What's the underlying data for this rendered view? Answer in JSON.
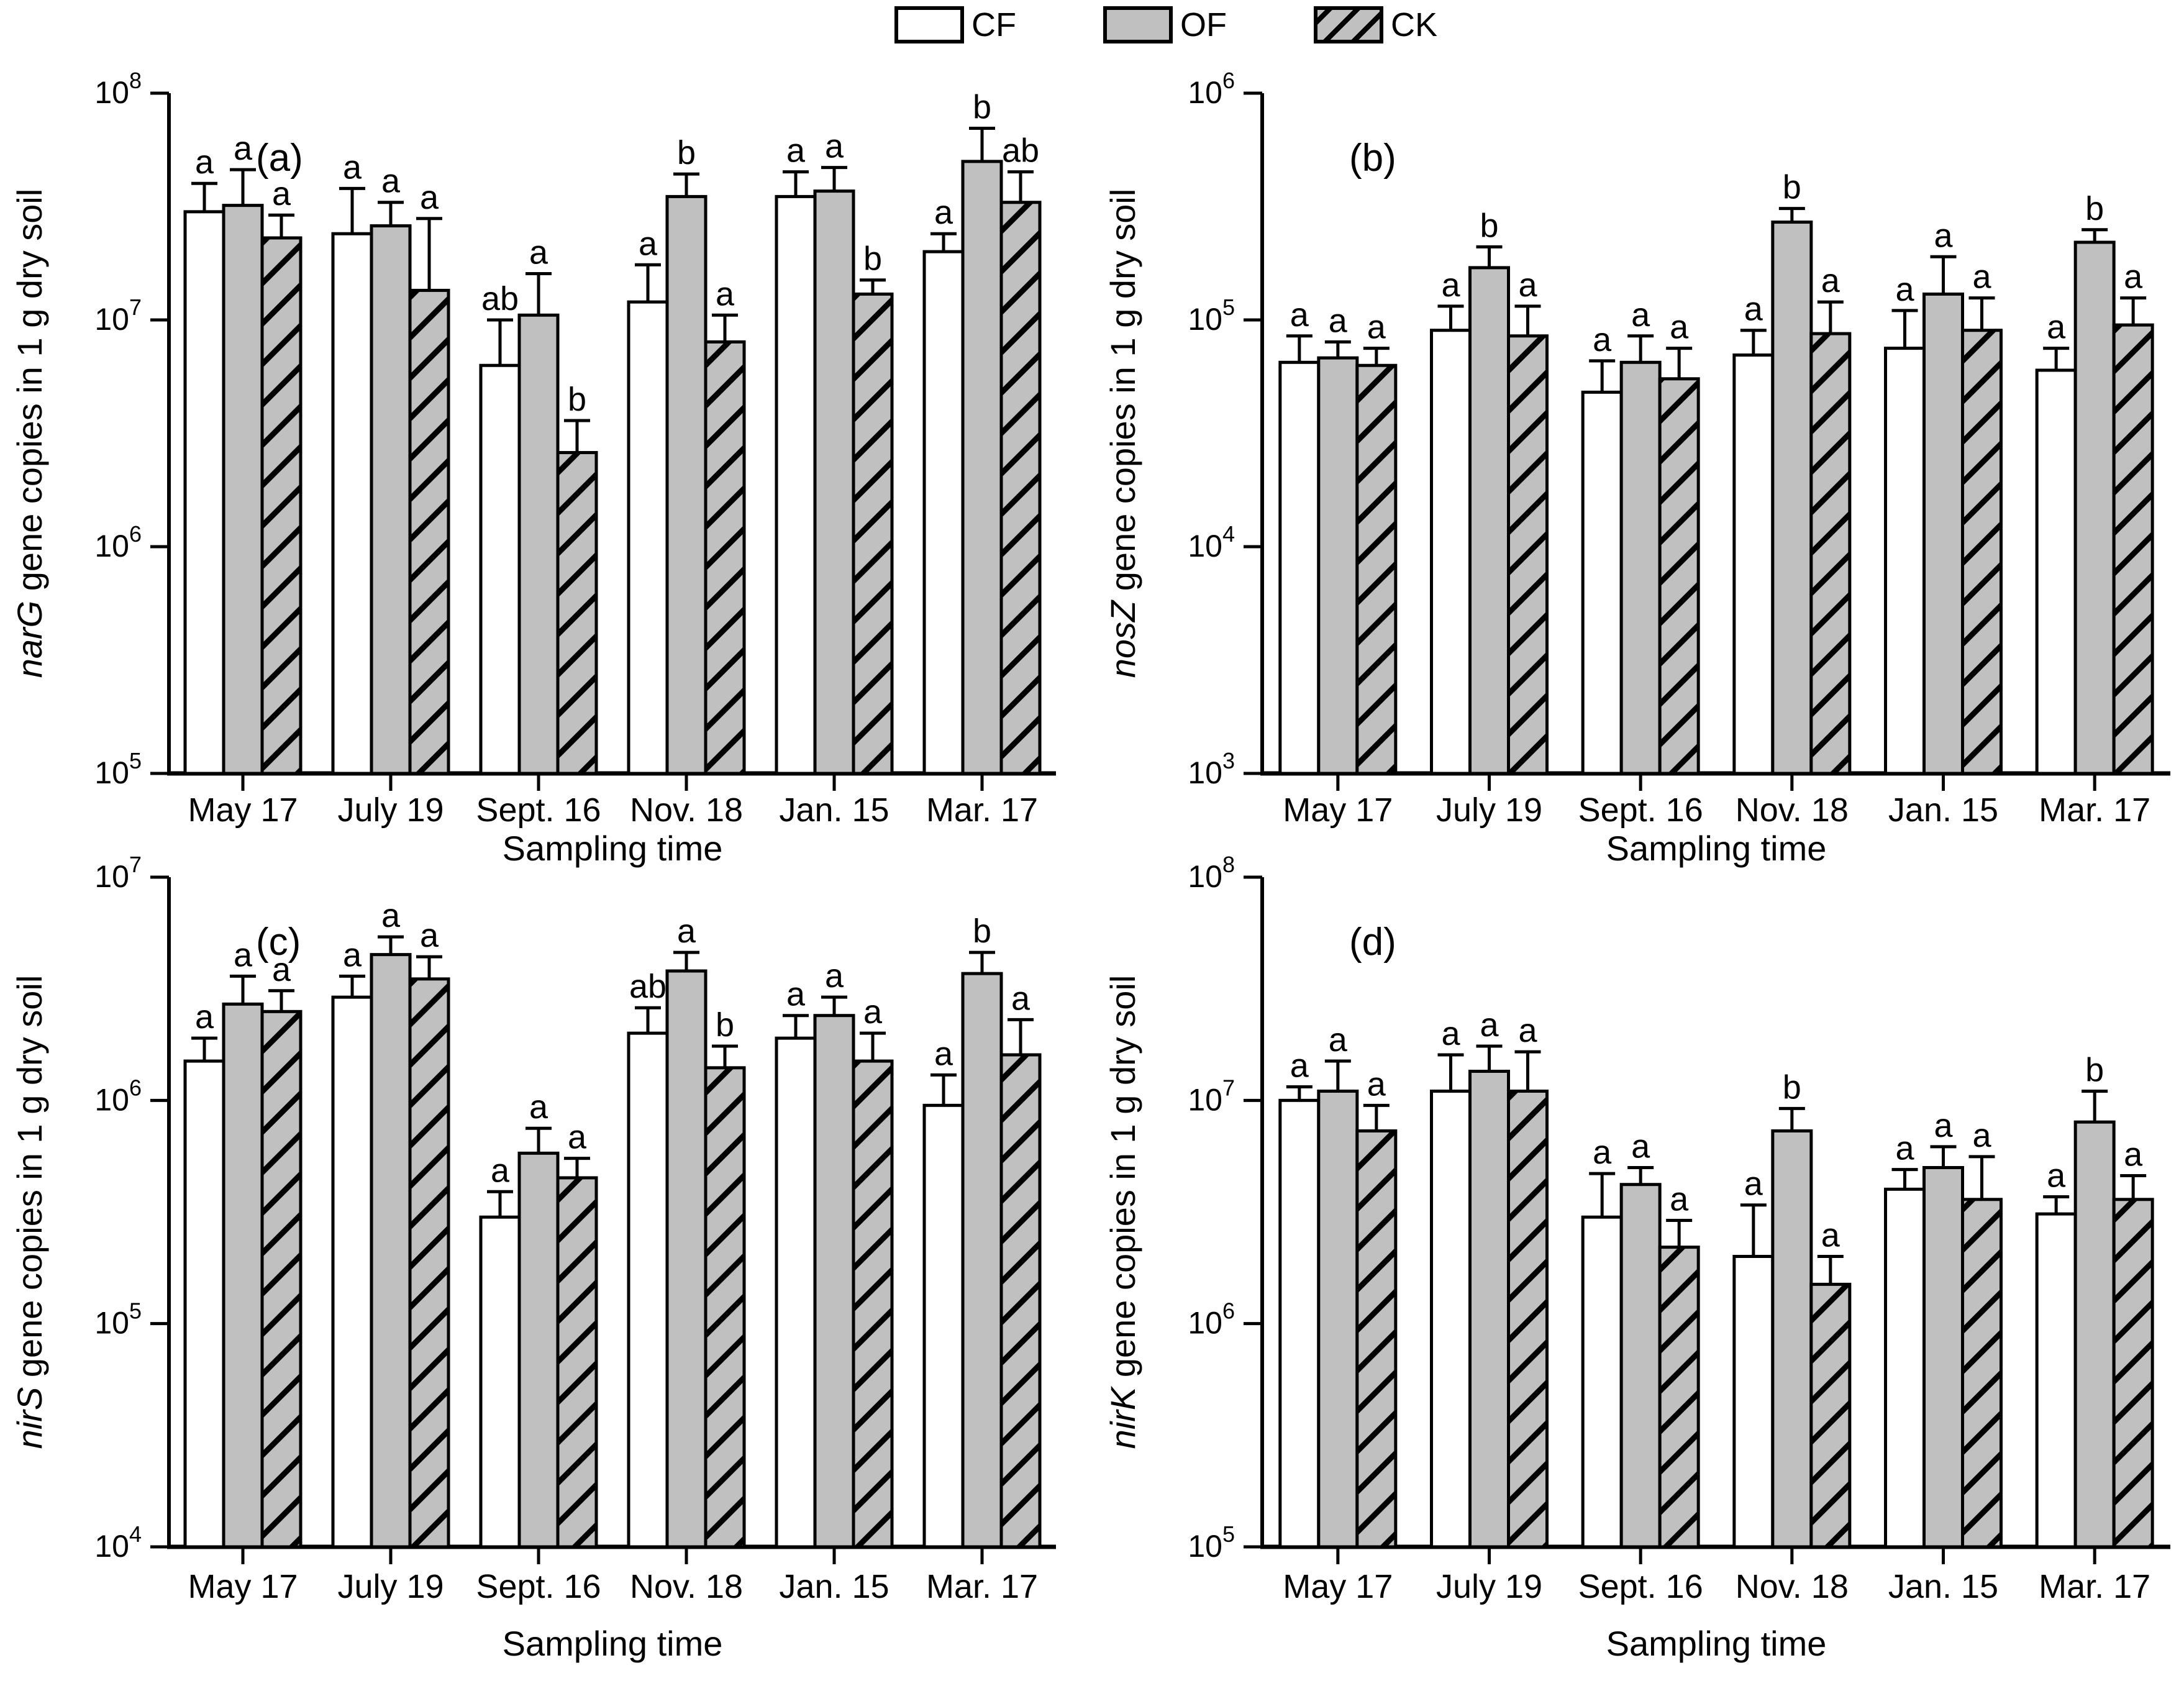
{
  "legend": {
    "items": [
      {
        "label": "CF",
        "fill": "#ffffff",
        "hatched": false
      },
      {
        "label": "OF",
        "fill": "#c0c0c0",
        "hatched": false
      },
      {
        "label": "CK",
        "fill": "#c0c0c0",
        "hatched": true
      }
    ]
  },
  "colors": {
    "axis": "#000000",
    "bar_outline": "#000000",
    "cf_fill": "#ffffff",
    "of_fill": "#c0c0c0",
    "ck_fill": "#c0c0c0",
    "hatch_line": "#000000"
  },
  "x_axis": {
    "title": "Sampling time",
    "categories": [
      "May 17",
      "July 19",
      "Sept. 16",
      "Nov. 18",
      "Jan. 15",
      "Mar. 17"
    ]
  },
  "chart_data": [
    {
      "panel": "(a)",
      "type": "bar",
      "y_scale": "log10",
      "gene": "narG",
      "ylabel_rest": " gene copies in 1 g dry soil",
      "ylim": [
        100000.0,
        100000000.0
      ],
      "ytick_exponents": [
        5,
        6,
        7,
        8
      ],
      "xlabel": "Sampling time",
      "categories": [
        "May 17",
        "July 19",
        "Sept. 16",
        "Nov. 18",
        "Jan. 15",
        "Mar. 17"
      ],
      "series": [
        {
          "name": "CF",
          "values": [
            30000000.0,
            24000000.0,
            6300000.0,
            12000000.0,
            35000000.0,
            20000000.0
          ],
          "err_top": [
            40000000.0,
            38000000.0,
            10000000.0,
            17500000.0,
            45000000.0,
            24000000.0
          ],
          "letters": [
            "a",
            "a",
            "ab",
            "a",
            "a",
            "a"
          ]
        },
        {
          "name": "OF",
          "values": [
            32000000.0,
            26000000.0,
            10500000.0,
            35000000.0,
            37000000.0,
            50000000.0
          ],
          "err_top": [
            46000000.0,
            33000000.0,
            16000000.0,
            44000000.0,
            47000000.0,
            70000000.0
          ],
          "letters": [
            "a",
            "a",
            "a",
            "b",
            "a",
            "b"
          ]
        },
        {
          "name": "CK",
          "values": [
            23000000.0,
            13500000.0,
            2600000.0,
            8000000.0,
            13000000.0,
            33000000.0
          ],
          "err_top": [
            29000000.0,
            28000000.0,
            3600000.0,
            10500000.0,
            15000000.0,
            45000000.0
          ],
          "letters": [
            "a",
            "a",
            "b",
            "a",
            "b",
            "ab"
          ]
        }
      ]
    },
    {
      "panel": "(b)",
      "type": "bar",
      "y_scale": "log10",
      "gene": "nosZ",
      "ylabel_rest": " gene copies in 1 g dry soil",
      "ylim": [
        1000.0,
        1000000.0
      ],
      "ytick_exponents": [
        3,
        4,
        5,
        6
      ],
      "xlabel": "Sampling time",
      "categories": [
        "May 17",
        "July 19",
        "Sept. 16",
        "Nov. 18",
        "Jan. 15",
        "Mar. 17"
      ],
      "series": [
        {
          "name": "CF",
          "values": [
            65000.0,
            90000.0,
            48000.0,
            70000.0,
            75000.0,
            60000.0
          ],
          "err_top": [
            85000.0,
            115000.0,
            66000.0,
            90000.0,
            110000.0,
            75000.0
          ],
          "letters": [
            "a",
            "a",
            "a",
            "a",
            "a",
            "a"
          ]
        },
        {
          "name": "OF",
          "values": [
            68000.0,
            170000.0,
            65000.0,
            270000.0,
            130000.0,
            220000.0
          ],
          "err_top": [
            80000.0,
            210000.0,
            85000.0,
            310000.0,
            190000.0,
            250000.0
          ],
          "letters": [
            "a",
            "b",
            "a",
            "b",
            "a",
            "b"
          ]
        },
        {
          "name": "CK",
          "values": [
            63000.0,
            85000.0,
            55000.0,
            87000.0,
            90000.0,
            95000.0
          ],
          "err_top": [
            75000.0,
            115000.0,
            75000.0,
            120000.0,
            125000.0,
            125000.0
          ],
          "letters": [
            "a",
            "a",
            "a",
            "a",
            "a",
            "a"
          ]
        }
      ]
    },
    {
      "panel": "(c)",
      "type": "bar",
      "y_scale": "log10",
      "gene": "nirS",
      "ylabel_rest": " gene copies in 1 g dry soil",
      "ylim": [
        10000.0,
        10000000.0
      ],
      "ytick_exponents": [
        4,
        5,
        6,
        7
      ],
      "xlabel": "Sampling time",
      "categories": [
        "May 17",
        "July 19",
        "Sept. 16",
        "Nov. 18",
        "Jan. 15",
        "Mar. 17"
      ],
      "series": [
        {
          "name": "CF",
          "values": [
            1500000.0,
            2900000.0,
            300000.0,
            2000000.0,
            1900000.0,
            950000.0
          ],
          "err_top": [
            1900000.0,
            3600000.0,
            390000.0,
            2600000.0,
            2400000.0,
            1300000.0
          ],
          "letters": [
            "a",
            "a",
            "a",
            "ab",
            "a",
            "a"
          ]
        },
        {
          "name": "OF",
          "values": [
            2700000.0,
            4500000.0,
            580000.0,
            3800000.0,
            2400000.0,
            3700000.0
          ],
          "err_top": [
            3600000.0,
            5400000.0,
            750000.0,
            4600000.0,
            2900000.0,
            4600000.0
          ],
          "letters": [
            "a",
            "a",
            "a",
            "a",
            "a",
            "b"
          ]
        },
        {
          "name": "CK",
          "values": [
            2500000.0,
            3500000.0,
            450000.0,
            1400000.0,
            1500000.0,
            1600000.0
          ],
          "err_top": [
            3100000.0,
            4400000.0,
            550000.0,
            1750000.0,
            2000000.0,
            2300000.0
          ],
          "letters": [
            "a",
            "a",
            "a",
            "b",
            "a",
            "a"
          ]
        }
      ]
    },
    {
      "panel": "(d)",
      "type": "bar",
      "y_scale": "log10",
      "gene": "nirK",
      "ylabel_rest": " gene copies in 1 g dry soil",
      "ylim": [
        100000.0,
        100000000.0
      ],
      "ytick_exponents": [
        5,
        6,
        7,
        8
      ],
      "xlabel": "Sampling time",
      "categories": [
        "May 17",
        "July 19",
        "Sept. 16",
        "Nov. 18",
        "Jan. 15",
        "Mar. 17"
      ],
      "series": [
        {
          "name": "CF",
          "values": [
            10000000.0,
            11000000.0,
            3000000.0,
            2000000.0,
            4000000.0,
            3100000.0
          ],
          "err_top": [
            11500000.0,
            16000000.0,
            4700000.0,
            3400000.0,
            4900000.0,
            3700000.0
          ],
          "letters": [
            "a",
            "a",
            "a",
            "a",
            "a",
            "a"
          ]
        },
        {
          "name": "OF",
          "values": [
            11000000.0,
            13500000.0,
            4200000.0,
            7300000.0,
            5000000.0,
            8000000.0
          ],
          "err_top": [
            15000000.0,
            17500000.0,
            5000000.0,
            9200000.0,
            6200000.0,
            11000000.0
          ],
          "letters": [
            "a",
            "a",
            "a",
            "b",
            "a",
            "b"
          ]
        },
        {
          "name": "CK",
          "values": [
            7300000.0,
            11000000.0,
            2200000.0,
            1500000.0,
            3600000.0,
            3600000.0
          ],
          "err_top": [
            9500000.0,
            16500000.0,
            2900000.0,
            2000000.0,
            5600000.0,
            4600000.0
          ],
          "letters": [
            "a",
            "a",
            "a",
            "a",
            "a",
            "a"
          ]
        }
      ]
    }
  ]
}
